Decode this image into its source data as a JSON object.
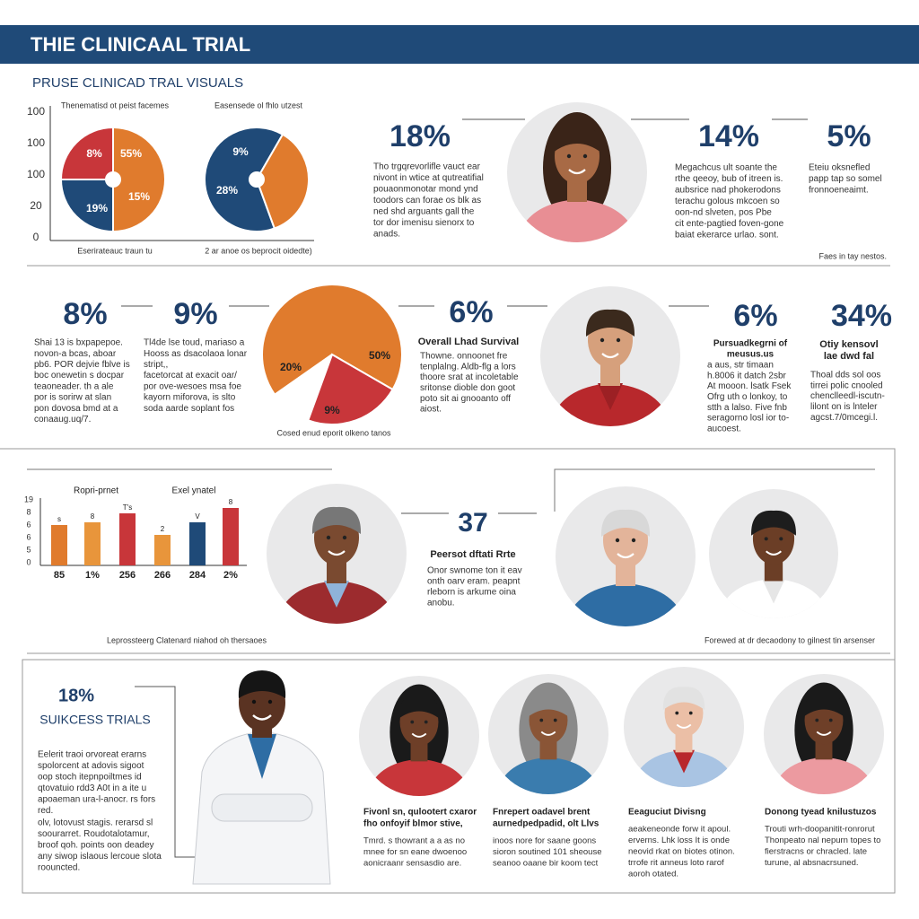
{
  "header": {
    "title": "THIE CLINICAAL TRIAL",
    "subtitle": "PRUSE CLINICAD TRAL VISUALS"
  },
  "section1": {
    "axis_labels": [
      "100",
      "100",
      "100",
      "20",
      "0"
    ],
    "pie_left": {
      "caption": "Thenematisd ot peist facemes",
      "labels": [
        "8%",
        "55%",
        "15%",
        "19%"
      ],
      "footer": "Eserirateauc traun tu"
    },
    "pie_right": {
      "caption": "Easensede ol fhlo utzest",
      "labels": [
        "9%",
        "28%"
      ],
      "footer": "2 ar anoe os beprocit oidedte)"
    },
    "stat_a": {
      "value": "18%",
      "text": [
        "Tho trgqrevorlifle vauct ear",
        "nivont in wtice at qutreatifial",
        "pouaonmonotar mond ynd",
        "toodors can forae os blk as",
        "ned shd arguants gall the",
        "tor dor imenisu sienorx to",
        "anads."
      ]
    },
    "stat_b": {
      "value": "14%",
      "text": [
        "Megachcus ult soante the",
        "rthe qeeoy, bub of itreen is.",
        "aubsrice nad phokerodons",
        "terachu golous mkcoen so",
        "oon-nd slveten, pos Pbe",
        "cit ente-pagtied foven-gone",
        "baiat ekerarce urlao. sont."
      ]
    },
    "stat_c": {
      "value": "5%",
      "text": [
        "Eteiu oksnefled",
        "papp tap so somel",
        "fronnoeneaimt."
      ]
    },
    "note": "Faes in tay nestos."
  },
  "section2": {
    "stat_a": {
      "value": "8%",
      "text": [
        "Shai 13 is bxpapepoe.",
        "novon-a bcas, aboar",
        "pb6. POR dejvie fblve is",
        "boc onewetin s docpar",
        "teaoneader. th a ale",
        "por is sorirw at slan",
        "pon dovosa bmd at a",
        "conaaug.uq/7."
      ]
    },
    "stat_b": {
      "value": "9%",
      "text": [
        "Tl4de lse toud, mariaso a",
        "Hooss as dsacolaoa lonar",
        "stript,,",
        "facetorcat at exacit oar/",
        "por ove-wesoes msa foe",
        "kayorn miforova, is slto",
        "soda aarde soplant fos"
      ]
    },
    "pie": {
      "labels": [
        "20%",
        "50%",
        "9%"
      ],
      "caption": "Cosed enud eporit olkeno tanos"
    },
    "stat_c": {
      "value": "6%",
      "heading": "Overall Lhad Survival",
      "text": [
        "Thowne. onnoonet fre",
        "tenplalng. Aldb-flg a lors",
        "thoore srat at incoletable",
        "sritonse dioble don goot",
        "poto sit ai gnooanto off",
        "aiost."
      ]
    },
    "stat_d": {
      "value": "6%",
      "heading": [
        "Pursuadkegrni of",
        "meusus.us"
      ],
      "text": [
        "a aus, str timaan",
        "h.8006 it datch 2sbr",
        "At mooon. lsatk Fsek",
        "Ofrg uth o lonkoy, to",
        "stth a lalso. Five fnb",
        "seragorno losl ior to-",
        "aucoest."
      ]
    },
    "stat_e": {
      "value": "34%",
      "heading": [
        "Otiy kensovl",
        "lae dwd fal"
      ],
      "text": [
        "Thoal dds sol oos",
        "tirrei polic cnooled",
        "chenclleedl-iscutn-",
        "lilont on is lnteler",
        "agcst.7/0mcegi.l."
      ]
    }
  },
  "section3": {
    "chart_captions": [
      "Ropri-prnet",
      "Exel ynatel"
    ],
    "axis_labels": [
      "19",
      "8",
      "6",
      "6",
      "5",
      "0"
    ],
    "bar_tops": [
      "s",
      "8",
      "T's",
      "2",
      "V",
      "8"
    ],
    "bar_labels": [
      "85",
      "1%",
      "256",
      "266",
      "284",
      "2%"
    ],
    "stat": {
      "value": "37",
      "heading": "Peersot dftati Rrte",
      "text": [
        "Onor swnome ton it eav",
        "onth oarv eram. peapnt",
        "rleborn is arkume oina",
        "anobu."
      ]
    },
    "caption_left": "Leprossteerg Clatenard niahod oh thersaoes",
    "caption_right": "Forewed at dr decaodony to gilnest tin arsenser"
  },
  "section4": {
    "value": "18%",
    "heading": "SUIKCESS TRIALS",
    "text_a": [
      "Eelerit traoi orvoreat erarns",
      "spolorcent at adovis sigoot",
      "oop stoch itepnpoiltmes id",
      "qtovatuio rdd3 A0t in a ite u",
      "apoaeman ura-l-anocr. rs fors",
      "red."
    ],
    "text_b": [
      "olv, lotovust stagis. rerarsd sl",
      "soourarret. Roudotalotamur,",
      "broof qoh. points oon deadey",
      "any siwop islaous lercoue slota",
      "roouncted."
    ],
    "profiles": [
      {
        "heading": [
          "Fivonl sn, qulootert cxaror",
          "fho onfoyif blmor stive,"
        ],
        "text": [
          "Tmrd. s thowrant a a as no",
          "mnee for sn eane dwoenoo",
          "aonicraanr sensasdio are."
        ]
      },
      {
        "heading": [
          "Fnrepert oadavel brent",
          "aurnedpedpadid, olt Llvs"
        ],
        "text": [
          "inoos nore for saane goons",
          "sioron soutined 101 sheouse",
          "seanoo oaane bir koom tect"
        ]
      },
      {
        "heading": [
          "Eeaguciut Divisng"
        ],
        "text": [
          "aeakeneonde forw it apoul.",
          "erverns. Lhk loss It is onde",
          "neovid rkat on biotes otinon.",
          "trrofe rit anneus loto rarof",
          "aoroh otated."
        ]
      },
      {
        "heading": [
          "Donong tyead knilustuzos"
        ],
        "text": [
          "Trouti wrh-doopanitit-ronrorut",
          "Thonpeato nal nepurn topes to",
          "fierstracns or chracled. late",
          "turune, al absnacrsuned."
        ]
      }
    ]
  }
}
